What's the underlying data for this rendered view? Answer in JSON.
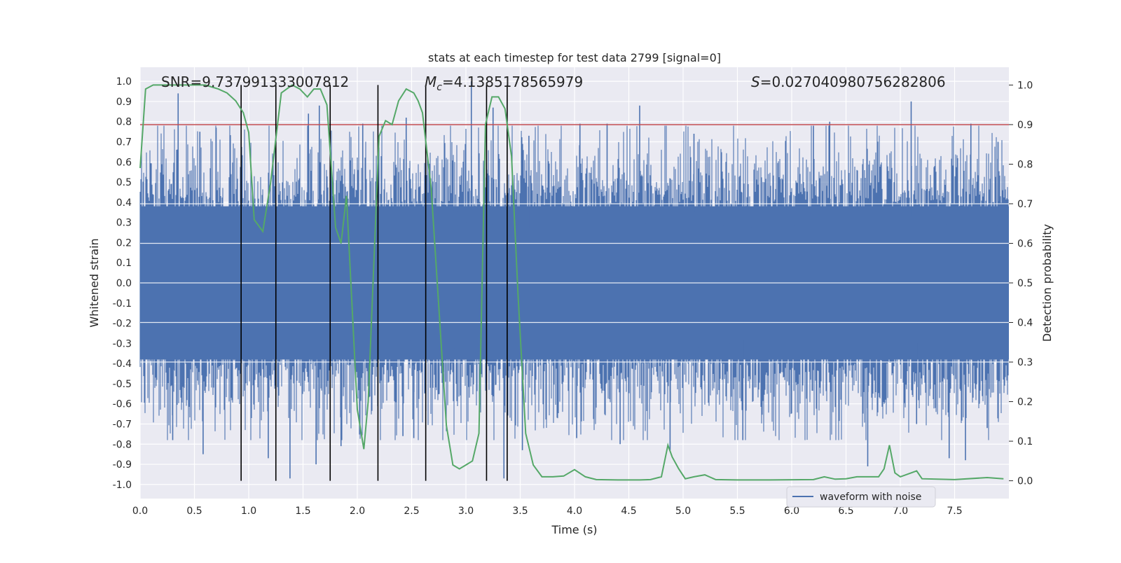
{
  "chart_data": {
    "type": "line",
    "title": "stats at each timestep for test data 2799 [signal=0]",
    "xlabel": "Time (s)",
    "ylabel": "Whitened strain",
    "y2label": "Detection probability",
    "xlim": [
      0,
      8
    ],
    "ylim": [
      -1.07,
      1.07
    ],
    "y2lim": [
      -0.045,
      1.045
    ],
    "xticks": [
      "0.0",
      "0.5",
      "1.0",
      "1.5",
      "2.0",
      "2.5",
      "3.0",
      "3.5",
      "4.0",
      "4.5",
      "5.0",
      "5.5",
      "6.0",
      "6.5",
      "7.0",
      "7.5"
    ],
    "yticks": [
      "-1.0",
      "-0.9",
      "-0.8",
      "-0.7",
      "-0.6",
      "-0.5",
      "-0.4",
      "-0.3",
      "-0.2",
      "-0.1",
      "0.0",
      "0.1",
      "0.2",
      "0.3",
      "0.4",
      "0.5",
      "0.6",
      "0.7",
      "0.8",
      "0.9",
      "1.0"
    ],
    "y2ticks": [
      "0.0",
      "0.1",
      "0.2",
      "0.3",
      "0.4",
      "0.5",
      "0.6",
      "0.7",
      "0.8",
      "0.9",
      "1.0"
    ],
    "grid": true,
    "legend_position": "lower-right",
    "annotations": {
      "snr": "SNR=9.737991333007812",
      "mc": "=4.1385178565979",
      "mc_symbol": "M",
      "mc_sub": "c",
      "s": "=0.027040980756282806",
      "s_symbol": "S"
    },
    "threshold": {
      "value": 0.9,
      "axis": "right",
      "color": "#c44e52"
    },
    "vlines": [
      0.93,
      1.25,
      1.75,
      2.19,
      2.63,
      3.19,
      3.38
    ],
    "series": [
      {
        "name": "waveform with noise",
        "axis": "left",
        "color": "#4c72b0",
        "kind": "noise",
        "envelope_upper": 0.45,
        "envelope_lower": -0.45,
        "peaks": [
          [
            0.35,
            0.94
          ],
          [
            0.55,
            0.75
          ],
          [
            0.7,
            0.77
          ],
          [
            1.55,
            0.84
          ],
          [
            1.65,
            0.88
          ],
          [
            2.05,
            0.79
          ],
          [
            2.45,
            0.82
          ],
          [
            3.05,
            1.0
          ],
          [
            3.25,
            0.87
          ],
          [
            3.58,
            0.73
          ],
          [
            4.05,
            0.79
          ],
          [
            4.3,
            0.79
          ],
          [
            4.6,
            0.88
          ],
          [
            5.1,
            0.74
          ],
          [
            6.2,
            0.78
          ],
          [
            6.35,
            0.8
          ],
          [
            7.1,
            0.9
          ],
          [
            7.65,
            0.79
          ],
          [
            7.9,
            0.7
          ],
          [
            0.3,
            -0.78
          ],
          [
            0.58,
            -0.85
          ],
          [
            1.18,
            -0.87
          ],
          [
            1.38,
            -0.97
          ],
          [
            1.62,
            -0.9
          ],
          [
            1.85,
            -0.81
          ],
          [
            2.42,
            -0.76
          ],
          [
            2.52,
            -0.77
          ],
          [
            3.35,
            -0.97
          ],
          [
            3.52,
            -0.83
          ],
          [
            4.02,
            -0.77
          ],
          [
            4.42,
            -0.8
          ],
          [
            4.88,
            -0.83
          ],
          [
            5.55,
            -0.78
          ],
          [
            6.7,
            -0.91
          ],
          [
            7.15,
            -0.7
          ],
          [
            7.45,
            -0.87
          ],
          [
            7.6,
            -0.88
          ],
          [
            7.8,
            -0.72
          ]
        ]
      },
      {
        "name": "detection probability",
        "axis": "right",
        "color": "#55a868",
        "x": [
          0.0,
          0.05,
          0.12,
          0.2,
          0.4,
          0.6,
          0.72,
          0.8,
          0.88,
          0.95,
          1.0,
          1.05,
          1.13,
          1.2,
          1.3,
          1.4,
          1.47,
          1.54,
          1.6,
          1.66,
          1.72,
          1.8,
          1.85,
          1.9,
          2.0,
          2.06,
          2.1,
          2.2,
          2.26,
          2.32,
          2.38,
          2.45,
          2.52,
          2.56,
          2.6,
          2.68,
          2.75,
          2.82,
          2.88,
          2.94,
          3.0,
          3.06,
          3.12,
          3.18,
          3.24,
          3.3,
          3.36,
          3.42,
          3.48,
          3.55,
          3.62,
          3.7,
          3.8,
          3.9,
          4.0,
          4.1,
          4.2,
          4.4,
          4.6,
          4.7,
          4.8,
          4.86,
          4.9,
          4.96,
          5.02,
          5.1,
          5.2,
          5.3,
          5.5,
          5.8,
          6.2,
          6.3,
          6.4,
          6.5,
          6.6,
          6.8,
          6.85,
          6.9,
          6.95,
          7.0,
          7.1,
          7.15,
          7.2,
          7.5,
          7.8,
          7.95
        ],
        "y": [
          0.79,
          0.99,
          1.0,
          1.0,
          1.0,
          1.0,
          0.99,
          0.98,
          0.96,
          0.93,
          0.88,
          0.66,
          0.63,
          0.75,
          0.98,
          1.0,
          0.99,
          0.97,
          0.99,
          0.99,
          0.95,
          0.64,
          0.6,
          0.72,
          0.18,
          0.08,
          0.2,
          0.87,
          0.91,
          0.9,
          0.96,
          0.99,
          0.98,
          0.96,
          0.93,
          0.74,
          0.44,
          0.14,
          0.04,
          0.03,
          0.04,
          0.05,
          0.12,
          0.9,
          0.97,
          0.97,
          0.94,
          0.82,
          0.47,
          0.12,
          0.04,
          0.01,
          0.01,
          0.012,
          0.028,
          0.01,
          0.003,
          0.002,
          0.002,
          0.003,
          0.01,
          0.09,
          0.06,
          0.03,
          0.005,
          0.01,
          0.015,
          0.003,
          0.002,
          0.002,
          0.003,
          0.01,
          0.004,
          0.005,
          0.01,
          0.01,
          0.03,
          0.09,
          0.02,
          0.01,
          0.02,
          0.025,
          0.005,
          0.003,
          0.008,
          0.005
        ]
      }
    ]
  }
}
